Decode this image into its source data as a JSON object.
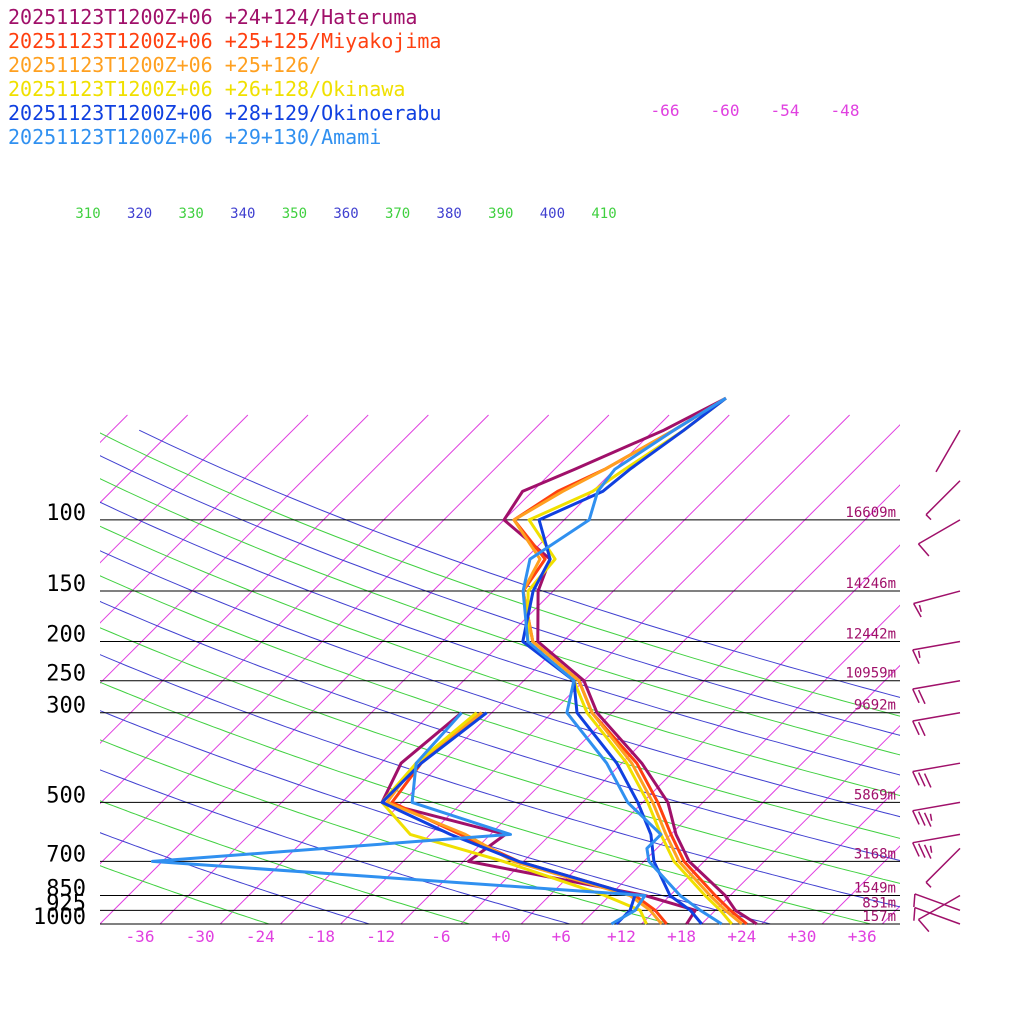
{
  "chart_data": {
    "type": "line",
    "title": "",
    "xlabel": "",
    "ylabel": "",
    "pressure_levels": [
      100,
      150,
      200,
      250,
      300,
      500,
      700,
      850,
      925,
      1000
    ],
    "pressure_level_labels": [
      "100",
      "150",
      "200",
      "250",
      "300",
      "500",
      "700",
      "850",
      "925",
      "1000"
    ],
    "height_labels": [
      {
        "p": 100,
        "label": "16609m"
      },
      {
        "p": 150,
        "label": "14246m"
      },
      {
        "p": 200,
        "label": "12442m"
      },
      {
        "p": 250,
        "label": "10959m"
      },
      {
        "p": 300,
        "label": "9692m"
      },
      {
        "p": 500,
        "label": "5869m"
      },
      {
        "p": 700,
        "label": "3168m"
      },
      {
        "p": 850,
        "label": "1549m"
      },
      {
        "p": 925,
        "label": "831m"
      },
      {
        "p": 1000,
        "label": "157m"
      }
    ],
    "temperature_ticks": [
      -36,
      -30,
      -24,
      -18,
      -12,
      -6,
      0,
      6,
      12,
      18,
      24,
      30,
      36
    ],
    "temperature_tick_labels": [
      "-36",
      "-30",
      "-24",
      "-18",
      "-12",
      "-6",
      "+0",
      "+6",
      "+12",
      "+18",
      "+24",
      "+30",
      "+36"
    ],
    "upper_isotherm_labels": [
      "-66",
      "-60",
      "-54",
      "-48"
    ],
    "theta_labels": [
      {
        "text": "310",
        "color": "#40d040"
      },
      {
        "text": "320",
        "color": "#4040d0"
      },
      {
        "text": "330",
        "color": "#40d040"
      },
      {
        "text": "340",
        "color": "#4040d0"
      },
      {
        "text": "350",
        "color": "#40d040"
      },
      {
        "text": "360",
        "color": "#4040d0"
      },
      {
        "text": "370",
        "color": "#40d040"
      },
      {
        "text": "380",
        "color": "#4040d0"
      },
      {
        "text": "390",
        "color": "#40d040"
      },
      {
        "text": "400",
        "color": "#4040d0"
      },
      {
        "text": "410",
        "color": "#40d040"
      }
    ],
    "grid": true,
    "legend_position": "top-left",
    "series": [
      {
        "name": "20251123T1200Z+06 +24+124/Hateruma",
        "color": "#a0106a",
        "temperature": [
          [
            1000,
            25.5
          ],
          [
            925,
            22.0
          ],
          [
            850,
            19.5
          ],
          [
            700,
            12.5
          ],
          [
            600,
            8.5
          ],
          [
            500,
            4.5
          ],
          [
            400,
            -2.0
          ],
          [
            300,
            -11.5
          ],
          [
            250,
            -16.0
          ],
          [
            200,
            -24.5
          ],
          [
            150,
            -29.5
          ],
          [
            125,
            -31.5
          ],
          [
            100,
            -40.0
          ],
          [
            85,
            -41.0
          ],
          [
            75,
            -38.0
          ],
          [
            60,
            -33.0
          ],
          [
            50,
            -30.0
          ]
        ],
        "dewpoint": [
          [
            1000,
            18.5
          ],
          [
            925,
            18.0
          ],
          [
            850,
            11.5
          ],
          [
            700,
            -9.5
          ],
          [
            600,
            -8.5
          ],
          [
            500,
            -24.0
          ],
          [
            400,
            -26.0
          ],
          [
            300,
            -25.0
          ]
        ]
      },
      {
        "name": "20251123T1200Z+06 +25+125/Miyakojima",
        "color": "#ff4010",
        "temperature": [
          [
            1000,
            24.5
          ],
          [
            925,
            21.5
          ],
          [
            850,
            18.5
          ],
          [
            700,
            12.0
          ],
          [
            600,
            8.0
          ],
          [
            500,
            3.5
          ],
          [
            400,
            -2.5
          ],
          [
            300,
            -12.0
          ],
          [
            250,
            -16.5
          ],
          [
            200,
            -25.0
          ],
          [
            150,
            -31.0
          ],
          [
            125,
            -32.0
          ],
          [
            100,
            -39.0
          ],
          [
            85,
            -37.5
          ],
          [
            75,
            -35.0
          ],
          [
            60,
            -32.0
          ],
          [
            50,
            -30.0
          ]
        ],
        "dewpoint": [
          [
            1000,
            16.5
          ],
          [
            925,
            14.0
          ],
          [
            850,
            10.5
          ],
          [
            700,
            -4.5
          ],
          [
            600,
            -13.0
          ],
          [
            500,
            -23.0
          ],
          [
            400,
            -24.0
          ],
          [
            300,
            -23.0
          ]
        ]
      },
      {
        "name": "20251123T1200Z+06 +25+126/",
        "color": "#ffa020",
        "temperature": [
          [
            1000,
            24.0
          ],
          [
            925,
            21.0
          ],
          [
            850,
            18.0
          ],
          [
            700,
            11.5
          ],
          [
            600,
            7.5
          ],
          [
            500,
            3.0
          ],
          [
            400,
            -3.0
          ],
          [
            300,
            -12.0
          ],
          [
            250,
            -16.5
          ],
          [
            200,
            -25.0
          ],
          [
            150,
            -31.0
          ],
          [
            125,
            -32.5
          ],
          [
            100,
            -39.0
          ],
          [
            85,
            -37.0
          ],
          [
            75,
            -35.0
          ],
          [
            60,
            -32.0
          ],
          [
            50,
            -30.0
          ]
        ],
        "dewpoint": [
          [
            1000,
            16.0
          ],
          [
            925,
            13.5
          ],
          [
            850,
            10.0
          ],
          [
            700,
            -5.0
          ],
          [
            600,
            -12.5
          ],
          [
            500,
            -23.5
          ],
          [
            400,
            -24.5
          ],
          [
            300,
            -23.0
          ]
        ]
      },
      {
        "name": "20251123T1200Z+06 +26+128/Okinawa",
        "color": "#f0e000",
        "temperature": [
          [
            1000,
            23.0
          ],
          [
            925,
            20.5
          ],
          [
            850,
            17.5
          ],
          [
            700,
            11.0
          ],
          [
            600,
            7.0
          ],
          [
            500,
            2.5
          ],
          [
            400,
            -3.5
          ],
          [
            300,
            -12.5
          ],
          [
            250,
            -17.0
          ],
          [
            200,
            -25.5
          ],
          [
            150,
            -30.5
          ],
          [
            125,
            -31.0
          ],
          [
            100,
            -37.5
          ],
          [
            85,
            -34.0
          ],
          [
            75,
            -33.0
          ],
          [
            60,
            -31.0
          ],
          [
            50,
            -30.0
          ]
        ],
        "dewpoint": [
          [
            1000,
            14.5
          ],
          [
            925,
            12.5
          ],
          [
            850,
            7.5
          ],
          [
            700,
            -6.0
          ],
          [
            600,
            -18.0
          ],
          [
            500,
            -24.0
          ],
          [
            400,
            -24.5
          ],
          [
            300,
            -23.5
          ]
        ]
      },
      {
        "name": "20251123T1200Z+06 +28+129/Okinoerabu",
        "color": "#1040e0",
        "temperature": [
          [
            1000,
            20.0
          ],
          [
            925,
            17.5
          ],
          [
            850,
            14.0
          ],
          [
            700,
            9.0
          ],
          [
            600,
            6.0
          ],
          [
            500,
            1.5
          ],
          [
            400,
            -4.5
          ],
          [
            300,
            -13.5
          ],
          [
            250,
            -17.0
          ],
          [
            200,
            -26.0
          ],
          [
            150,
            -30.0
          ],
          [
            125,
            -31.5
          ],
          [
            100,
            -36.5
          ],
          [
            85,
            -33.0
          ],
          [
            75,
            -32.5
          ],
          [
            60,
            -31.0
          ],
          [
            50,
            -30.0
          ]
        ],
        "dewpoint": [
          [
            1000,
            11.5
          ],
          [
            925,
            11.5
          ],
          [
            850,
            10.5
          ],
          [
            700,
            -4.5
          ],
          [
            600,
            -14.0
          ],
          [
            500,
            -24.0
          ],
          [
            400,
            -24.0
          ],
          [
            300,
            -22.5
          ]
        ]
      },
      {
        "name": "20251123T1200Z+06 +29+130/Amami",
        "color": "#3090f0",
        "temperature": [
          [
            1000,
            22.0
          ],
          [
            925,
            18.5
          ],
          [
            850,
            15.0
          ],
          [
            700,
            8.5
          ],
          [
            650,
            7.0
          ],
          [
            600,
            7.0
          ],
          [
            500,
            0.5
          ],
          [
            400,
            -5.5
          ],
          [
            300,
            -14.5
          ],
          [
            250,
            -17.0
          ],
          [
            200,
            -25.5
          ],
          [
            150,
            -31.0
          ],
          [
            125,
            -33.5
          ],
          [
            100,
            -31.5
          ],
          [
            85,
            -33.5
          ],
          [
            75,
            -34.0
          ],
          [
            60,
            -32.0
          ],
          [
            50,
            -30.0
          ]
        ],
        "dewpoint": [
          [
            1000,
            11.0
          ],
          [
            925,
            12.0
          ],
          [
            850,
            11.5
          ],
          [
            700,
            -41.0
          ],
          [
            600,
            -8.0
          ],
          [
            500,
            -21.0
          ],
          [
            400,
            -24.5
          ],
          [
            300,
            -25.0
          ]
        ]
      }
    ],
    "wind_barbs": [
      {
        "p": 1000,
        "dir": 250,
        "speed": 10
      },
      {
        "p": 925,
        "dir": 250,
        "speed": 10
      },
      {
        "p": 850,
        "dir": 300,
        "speed": 10
      },
      {
        "p": 650,
        "dir": 315,
        "speed": 5
      },
      {
        "p": 600,
        "dir": 280,
        "speed": 35
      },
      {
        "p": 500,
        "dir": 280,
        "speed": 35
      },
      {
        "p": 400,
        "dir": 280,
        "speed": 30
      },
      {
        "p": 300,
        "dir": 280,
        "speed": 20
      },
      {
        "p": 250,
        "dir": 280,
        "speed": 20
      },
      {
        "p": 200,
        "dir": 280,
        "speed": 15
      },
      {
        "p": 150,
        "dir": 285,
        "speed": 15
      },
      {
        "p": 100,
        "dir": 300,
        "speed": 10
      },
      {
        "p": 80,
        "dir": 315,
        "speed": 5
      },
      {
        "p": 60,
        "dir": 330,
        "speed": 0
      }
    ]
  }
}
